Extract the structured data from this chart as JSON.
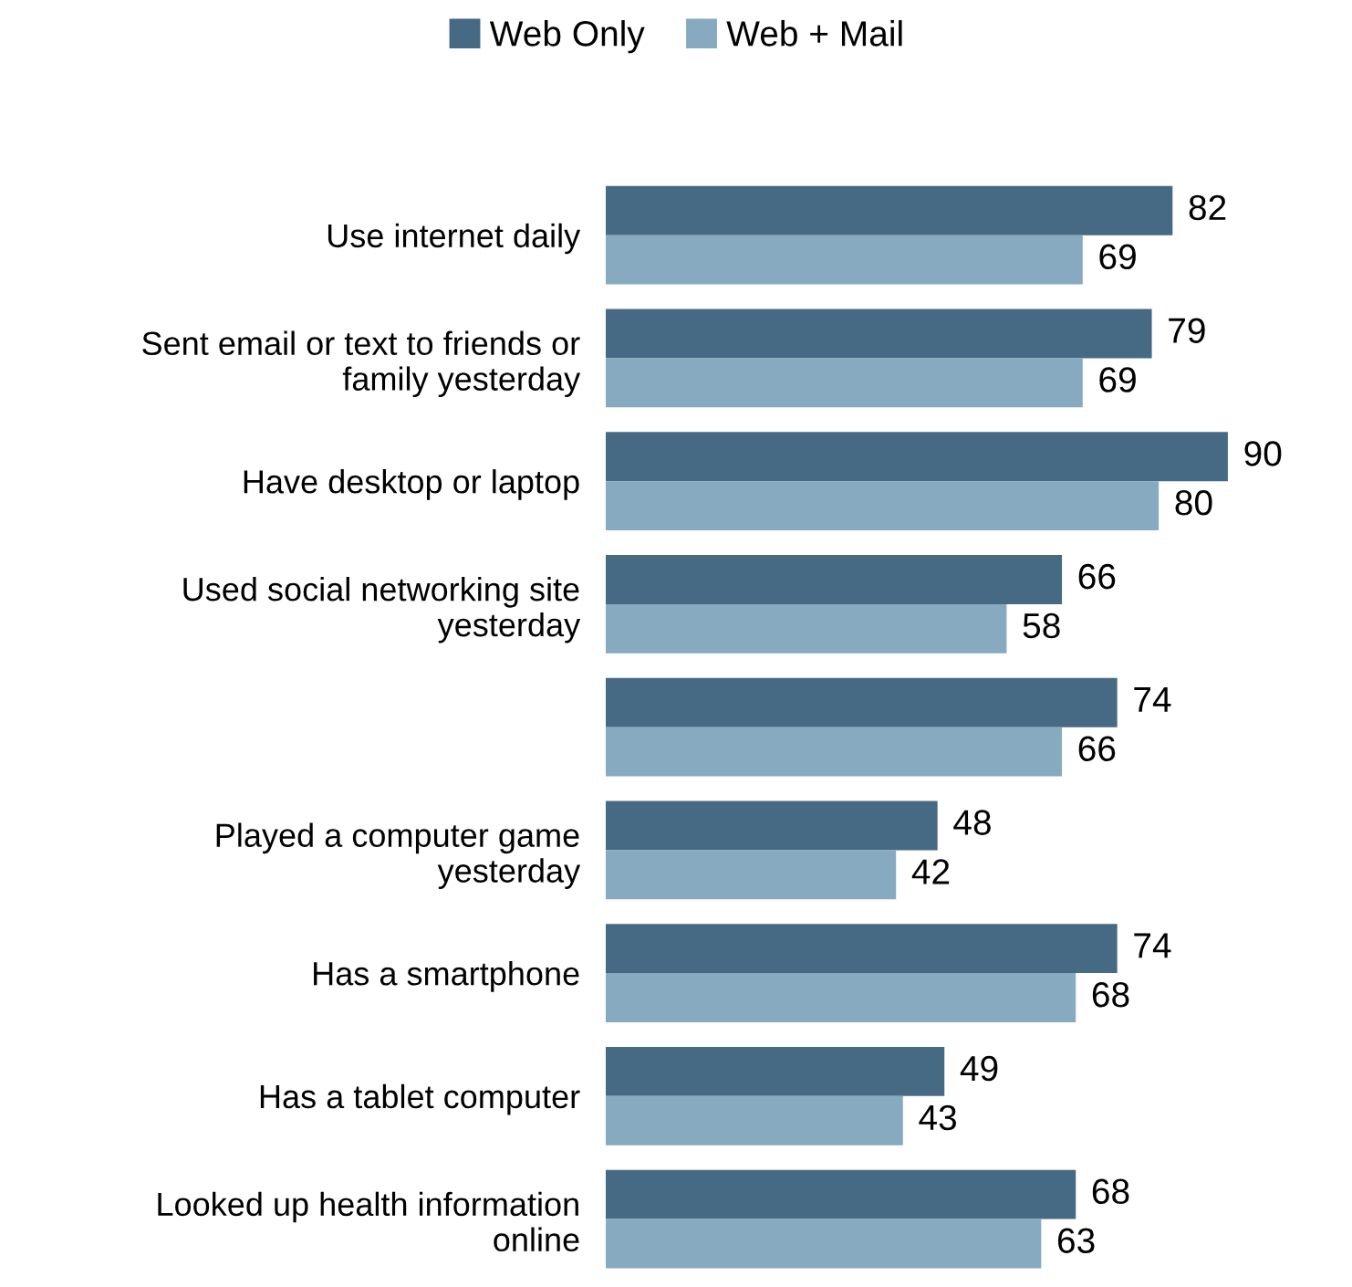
{
  "chart_data": {
    "type": "bar",
    "orientation": "horizontal",
    "categories": [
      "Use internet daily",
      "Sent email or text to friends or\nfamily yesterday",
      "Have desktop or laptop",
      "Used social networking site\nyesterday",
      null,
      "Played a computer game\nyesterday",
      "Has a smartphone",
      "Has a tablet computer",
      "Looked up health information\nonline"
    ],
    "series": [
      {
        "name": "Web Only",
        "color": "#466a84",
        "values": [
          82,
          79,
          90,
          66,
          74,
          48,
          74,
          49,
          68
        ]
      },
      {
        "name": "Web + Mail",
        "color": "#87aac1",
        "values": [
          69,
          69,
          80,
          58,
          66,
          42,
          68,
          43,
          63
        ]
      }
    ],
    "data_labels": true,
    "legend": "top",
    "grid": false
  }
}
